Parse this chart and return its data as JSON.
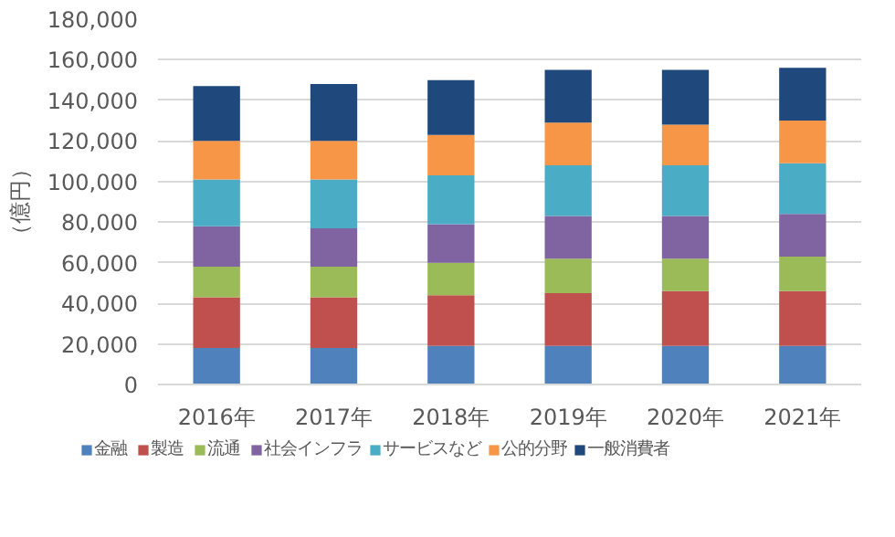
{
  "chart_data": {
    "type": "bar",
    "stacked": true,
    "ylabel": "（億円）",
    "categories": [
      "2016年",
      "2017年",
      "2018年",
      "2019年",
      "2020年",
      "2021年"
    ],
    "series": [
      {
        "name": "金融",
        "color": "#4f81bd",
        "values": [
          18000,
          18000,
          19000,
          19000,
          19000,
          19000
        ]
      },
      {
        "name": "製造",
        "color": "#c0504d",
        "values": [
          25000,
          25000,
          25000,
          26000,
          27000,
          27000
        ]
      },
      {
        "name": "流通",
        "color": "#9bbb59",
        "values": [
          15000,
          15000,
          16000,
          17000,
          16000,
          17000
        ]
      },
      {
        "name": "社会インフラ",
        "color": "#8064a2",
        "values": [
          20000,
          19000,
          19000,
          21000,
          21000,
          21000
        ]
      },
      {
        "name": "サービスなど",
        "color": "#4bacc6",
        "values": [
          23000,
          24000,
          24000,
          25000,
          25000,
          25000
        ]
      },
      {
        "name": "公的分野",
        "color": "#f79646",
        "values": [
          19000,
          19000,
          20000,
          21000,
          20000,
          21000
        ]
      },
      {
        "name": "一般消費者",
        "color": "#1f497d",
        "values": [
          27000,
          28000,
          27000,
          26000,
          27000,
          26000
        ]
      }
    ],
    "ylim": [
      0,
      180000
    ],
    "yticks": [
      {
        "value": 0,
        "label": "0"
      },
      {
        "value": 20000,
        "label": "20,000"
      },
      {
        "value": 40000,
        "label": "40,000"
      },
      {
        "value": 60000,
        "label": "60,000"
      },
      {
        "value": 80000,
        "label": "80,000"
      },
      {
        "value": 100000,
        "label": "100,000"
      },
      {
        "value": 120000,
        "label": "120,000"
      },
      {
        "value": 140000,
        "label": "140,000"
      },
      {
        "value": 160000,
        "label": "160,000"
      },
      {
        "value": 180000,
        "label": "180,000"
      }
    ],
    "grid": "y",
    "legend": "bottom"
  }
}
